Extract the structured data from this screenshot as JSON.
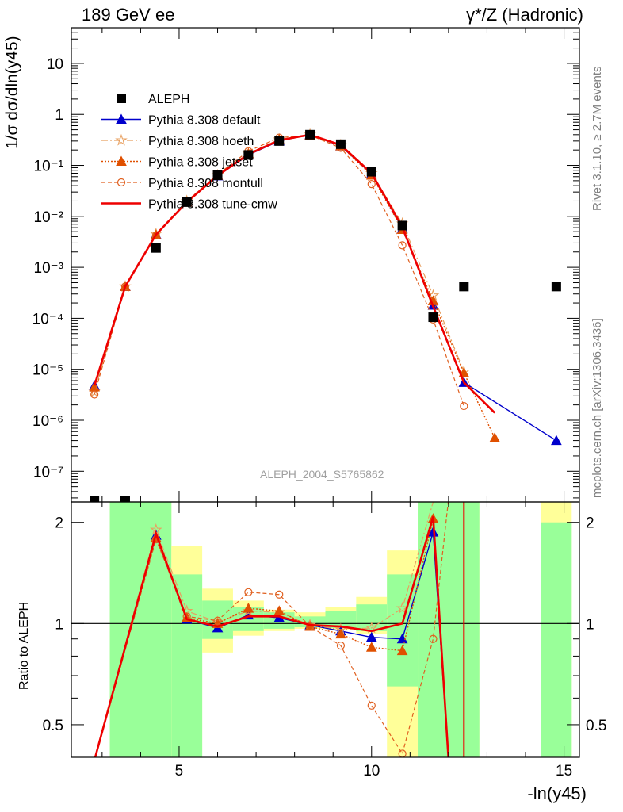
{
  "header": {
    "left": "189 GeV ee",
    "right": "γ*/Z (Hadronic)"
  },
  "side_labels": {
    "rivet": "Rivet 3.1.10, ≥ 2.7M events",
    "mcplots": "mcplots.cern.ch [arXiv:1306.3436]"
  },
  "analysis_label": "ALEPH_2004_S5765862",
  "colors": {
    "data": "#000000",
    "default": "#0000cc",
    "hoeth": "#e8a060",
    "jetset": "#e05000",
    "montull": "#e06020",
    "tune_cmw": "#ee0000",
    "band_inner": "#99ff99",
    "band_outer": "#ffff99"
  },
  "chart_data": [
    {
      "type": "scatter",
      "panel": "main",
      "ylabel": "1/σ dσ/dln(y45)",
      "yscale": "log",
      "ylim": [
        2.5e-08,
        50
      ],
      "xlim": [
        2.2,
        15.4
      ],
      "x_ticks": [
        5,
        10,
        15
      ],
      "y_tick_labels": [
        "10",
        "1",
        "10⁻¹",
        "10⁻²",
        "10⁻³",
        "10⁻⁴",
        "10⁻⁵",
        "10⁻⁶",
        "10⁻⁷"
      ],
      "legend": {
        "position": "top-left",
        "entries": [
          "ALEPH",
          "Pythia 8.308 default",
          "Pythia 8.308 hoeth",
          "Pythia 8.308 jetset",
          "Pythia 8.308 montull",
          "Pythia 8.308 tune-cmw"
        ]
      },
      "data": {
        "name": "ALEPH",
        "x": [
          2.8,
          3.6,
          4.4,
          5.2,
          6.0,
          6.8,
          7.6,
          8.4,
          9.2,
          10.0,
          10.8,
          11.6,
          12.4,
          14.8
        ],
        "y": [
          2.65e-08,
          2.65e-08,
          0.0024,
          0.019,
          0.064,
          0.16,
          0.3,
          0.4,
          0.26,
          0.075,
          0.0066,
          0.000105,
          0.00042,
          0.00042
        ]
      },
      "series": [
        {
          "name": "Pythia 8.308 default",
          "marker": "triangle",
          "x": [
            2.8,
            3.6,
            4.4,
            5.2,
            6.0,
            6.8,
            7.6,
            8.4,
            9.2,
            10.0,
            10.8,
            11.6,
            12.4,
            14.8
          ],
          "y": [
            4.8e-06,
            0.00042,
            0.0044,
            0.019,
            0.062,
            0.16,
            0.3,
            0.4,
            0.24,
            0.068,
            0.0058,
            0.00018,
            5.5e-06,
            4e-07
          ]
        },
        {
          "name": "Pythia 8.308 hoeth",
          "marker": "star",
          "x": [
            2.8,
            3.6,
            4.4,
            5.2,
            6.0,
            6.8,
            7.6,
            8.4,
            9.2,
            10.0,
            10.8,
            11.6,
            12.4
          ],
          "y": [
            3.6e-06,
            0.00042,
            0.0045,
            0.02,
            0.064,
            0.17,
            0.32,
            0.4,
            0.25,
            0.07,
            0.0072,
            0.00028,
            9e-06
          ]
        },
        {
          "name": "Pythia 8.308 jetset",
          "marker": "triangle",
          "x": [
            2.8,
            3.6,
            4.4,
            5.2,
            6.0,
            6.8,
            7.6,
            8.4,
            9.2,
            10.0,
            10.8,
            11.6,
            12.4,
            13.2
          ],
          "y": [
            4.5e-06,
            0.00042,
            0.0043,
            0.019,
            0.064,
            0.17,
            0.32,
            0.39,
            0.24,
            0.064,
            0.0055,
            0.00022,
            8.5e-06,
            4.5e-07
          ]
        },
        {
          "name": "Pythia 8.308 montull",
          "marker": "circle",
          "x": [
            2.8,
            3.6,
            4.4,
            5.2,
            6.0,
            6.8,
            7.6,
            8.4,
            9.2,
            10.0,
            10.8,
            11.6,
            12.4
          ],
          "y": [
            3.2e-06,
            0.00042,
            0.0042,
            0.02,
            0.066,
            0.19,
            0.35,
            0.39,
            0.22,
            0.043,
            0.0027,
            9.5e-05,
            1.9e-06
          ]
        },
        {
          "name": "Pythia 8.308 tune-cmw",
          "marker": "line",
          "x": [
            2.8,
            3.6,
            4.4,
            5.2,
            6.0,
            6.8,
            7.6,
            8.4,
            9.2,
            10.0,
            10.8,
            11.6,
            12.4,
            13.2
          ],
          "y": [
            4.8e-06,
            0.00042,
            0.0044,
            0.019,
            0.063,
            0.165,
            0.31,
            0.4,
            0.25,
            0.07,
            0.0062,
            0.00017,
            5.5e-06,
            1.4e-06
          ]
        }
      ]
    },
    {
      "type": "line",
      "panel": "ratio",
      "ylabel": "Ratio to ALEPH",
      "xlabel": "-ln(y45)",
      "yscale": "log",
      "ylim": [
        0.4,
        2.3
      ],
      "xlim": [
        2.2,
        15.4
      ],
      "x_ticks": [
        5,
        10,
        15
      ],
      "y_ticks": [
        0.5,
        1,
        2
      ],
      "bands": [
        {
          "x0": 3.2,
          "x1": 4.8,
          "inner": [
            0.4,
            2.3
          ],
          "outer": [
            0.4,
            2.3
          ]
        },
        {
          "x0": 4.8,
          "x1": 5.6,
          "inner": [
            0.4,
            1.4
          ],
          "outer": [
            0.4,
            1.7
          ]
        },
        {
          "x0": 5.6,
          "x1": 6.4,
          "inner": [
            0.9,
            1.17
          ],
          "outer": [
            0.82,
            1.27
          ]
        },
        {
          "x0": 6.4,
          "x1": 7.2,
          "inner": [
            0.95,
            1.12
          ],
          "outer": [
            0.92,
            1.17
          ]
        },
        {
          "x0": 7.2,
          "x1": 8.0,
          "inner": [
            0.965,
            1.08
          ],
          "outer": [
            0.95,
            1.1
          ]
        },
        {
          "x0": 8.0,
          "x1": 8.8,
          "inner": [
            0.975,
            1.05
          ],
          "outer": [
            0.965,
            1.08
          ]
        },
        {
          "x0": 8.8,
          "x1": 9.6,
          "inner": [
            0.97,
            1.09
          ],
          "outer": [
            0.96,
            1.12
          ]
        },
        {
          "x0": 9.6,
          "x1": 10.4,
          "inner": [
            0.95,
            1.14
          ],
          "outer": [
            0.93,
            1.2
          ]
        },
        {
          "x0": 10.4,
          "x1": 11.2,
          "inner": [
            0.65,
            1.4
          ],
          "outer": [
            0.4,
            1.65
          ]
        },
        {
          "x0": 11.2,
          "x1": 12.8,
          "inner": [
            0.4,
            2.3
          ],
          "outer": [
            0.4,
            2.3
          ]
        },
        {
          "x0": 14.4,
          "x1": 15.2,
          "inner": [
            0.4,
            2.0
          ],
          "outer": [
            0.4,
            2.3
          ]
        }
      ],
      "series": [
        {
          "name": "Pythia 8.308 default",
          "x": [
            2.8,
            4.4,
            5.2,
            6.0,
            6.8,
            7.6,
            8.4,
            9.2,
            10.0,
            10.8,
            11.6,
            12.0
          ],
          "y": [
            0.3,
            1.83,
            1.03,
            0.97,
            1.06,
            1.04,
            0.99,
            0.95,
            0.91,
            0.9,
            1.87,
            0.3
          ]
        },
        {
          "name": "Pythia 8.308 hoeth",
          "x": [
            2.8,
            4.4,
            5.2,
            6.0,
            6.8,
            7.6,
            8.4,
            9.2,
            10.0,
            10.8,
            11.6,
            11.8
          ],
          "y": [
            0.3,
            1.9,
            1.09,
            1.01,
            1.09,
            1.08,
            0.99,
            0.96,
            0.97,
            1.11,
            2.3,
            2.35
          ]
        },
        {
          "name": "Pythia 8.308 jetset",
          "x": [
            2.8,
            4.4,
            5.2,
            6.0,
            6.8,
            7.6,
            8.4,
            9.2,
            10.0,
            10.8,
            11.6,
            12.0
          ],
          "y": [
            0.3,
            1.8,
            1.04,
            1.0,
            1.11,
            1.09,
            0.98,
            0.93,
            0.85,
            0.83,
            2.05,
            0.3
          ]
        },
        {
          "name": "Pythia 8.308 montull",
          "x": [
            2.8,
            4.4,
            5.2,
            6.0,
            6.8,
            7.6,
            8.4,
            9.2,
            10.0,
            10.8,
            11.6,
            12.0
          ],
          "y": [
            0.3,
            1.78,
            1.05,
            1.02,
            1.24,
            1.22,
            0.98,
            0.86,
            0.57,
            0.41,
            0.9,
            2.35
          ]
        },
        {
          "name": "Pythia 8.308 tune-cmw",
          "x": [
            2.8,
            4.4,
            5.2,
            6.0,
            6.8,
            7.6,
            8.4,
            9.2,
            10.0,
            10.8,
            11.6,
            12.0
          ],
          "y": [
            0.3,
            1.85,
            1.03,
            0.98,
            1.05,
            1.05,
            0.99,
            0.98,
            0.95,
            1.0,
            2.08,
            0.3
          ]
        }
      ]
    }
  ]
}
